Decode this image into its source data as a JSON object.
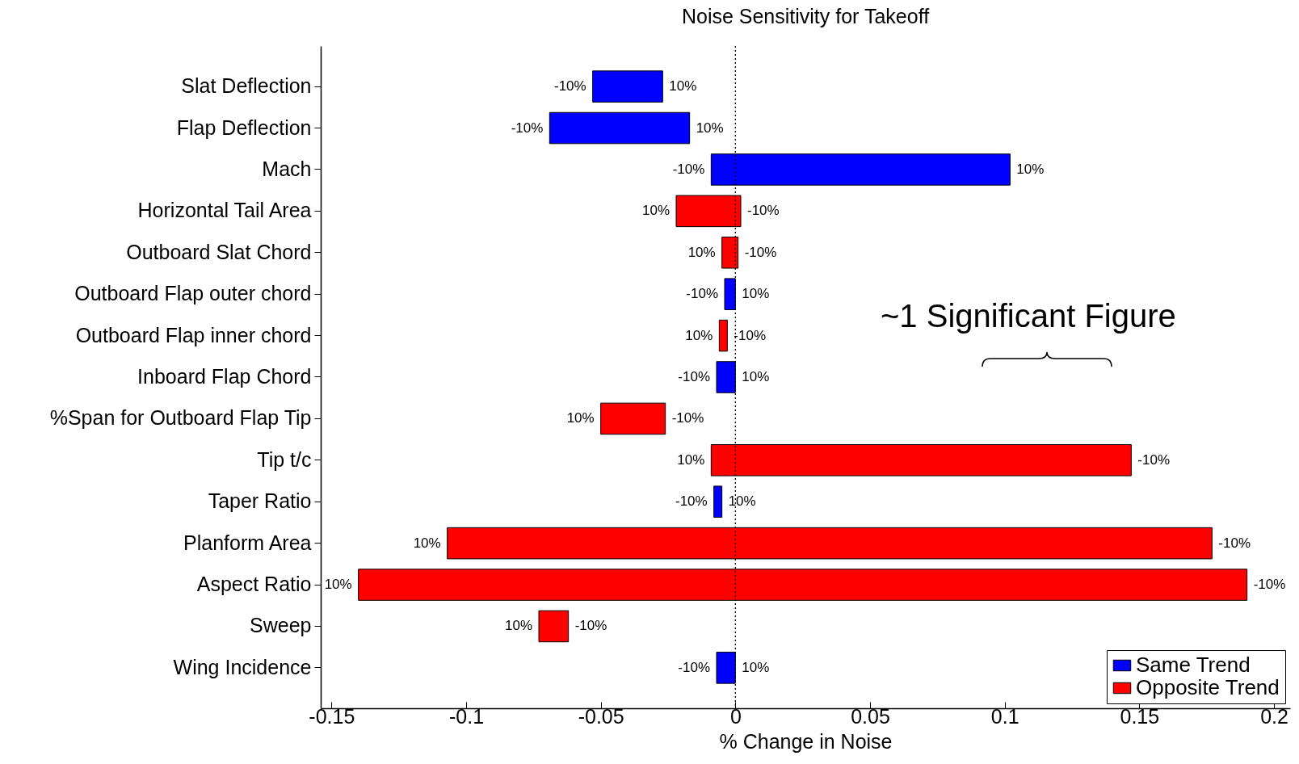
{
  "chart_data": {
    "type": "bar",
    "orientation": "horizontal",
    "title": "Noise Sensitivity for Takeoff",
    "xlabel": "% Change in Noise",
    "categories": [
      "Slat Deflection",
      "Flap Deflection",
      "Mach",
      "Horizontal Tail Area",
      "Outboard Slat Chord",
      "Outboard Flap outer chord",
      "Outboard Flap inner chord",
      "Inboard Flap Chord",
      "%Span for Outboard Flap Tip",
      "Tip t/c",
      "Taper Ratio",
      "Planform Area",
      "Aspect Ratio",
      "Sweep",
      "Wing Incidence"
    ],
    "series": [
      {
        "name": "Same Trend",
        "color": "#0000ff",
        "base": [
          -0.053,
          -0.069,
          -0.009,
          null,
          null,
          -0.004,
          null,
          -0.007,
          null,
          null,
          -0.008,
          null,
          null,
          null,
          -0.007
        ],
        "values": [
          0.026,
          0.052,
          0.111,
          null,
          null,
          0.004,
          null,
          0.007,
          null,
          null,
          0.003,
          null,
          null,
          null,
          0.007
        ]
      },
      {
        "name": "Opposite Trend",
        "color": "#ff0000",
        "base": [
          null,
          null,
          null,
          -0.022,
          -0.005,
          null,
          -0.006,
          null,
          -0.05,
          -0.009,
          null,
          -0.107,
          -0.14,
          -0.073,
          null
        ],
        "values": [
          null,
          null,
          null,
          0.024,
          0.006,
          null,
          0.003,
          null,
          0.024,
          0.156,
          null,
          0.284,
          0.33,
          0.011,
          null
        ]
      }
    ],
    "xlim": [
      -0.154,
      0.206
    ],
    "xticks": [
      -0.15,
      -0.1,
      -0.05,
      0,
      0.05,
      0.1,
      0.15,
      0.2
    ],
    "ref_lines": [
      {
        "axis": "x",
        "value": 0,
        "line_style": "dotted",
        "color": "#000000"
      }
    ],
    "legend": "bottom right",
    "grid": false,
    "annotations": [
      {
        "text": "-10%",
        "x": -0.053,
        "y": "Slat Deflection"
      },
      {
        "text": "10%",
        "x": -0.027,
        "y": "Slat Deflection"
      },
      {
        "text": "-10%",
        "x": -0.069,
        "y": "Flap Deflection"
      },
      {
        "text": "10%",
        "x": -0.017,
        "y": "Flap Deflection"
      },
      {
        "text": "-10%",
        "x": -0.009,
        "y": "Mach"
      },
      {
        "text": "10%",
        "x": 0.102,
        "y": "Mach"
      },
      {
        "text": "10%",
        "x": -0.022,
        "y": "Horizontal Tail Area"
      },
      {
        "text": "-10%",
        "x": 0.002,
        "y": "Horizontal Tail Area"
      },
      {
        "text": "10%",
        "x": -0.005,
        "y": "Outboard Slat Chord"
      },
      {
        "text": "-10%",
        "x": 0.001,
        "y": "Outboard Slat Chord"
      },
      {
        "text": "-10%",
        "x": -0.004,
        "y": "Outboard Flap outer chord"
      },
      {
        "text": "10%",
        "x": 0,
        "y": "Outboard Flap outer chord"
      },
      {
        "text": "10%",
        "x": -0.006,
        "y": "Outboard Flap inner chord"
      },
      {
        "text": "-10%",
        "x": -0.003,
        "y": "Outboard Flap inner chord"
      },
      {
        "text": "-10%",
        "x": -0.007,
        "y": "Inboard Flap Chord"
      },
      {
        "text": "10%",
        "x": 0,
        "y": "Inboard Flap Chord"
      },
      {
        "text": "10%",
        "x": -0.05,
        "y": "%Span for Outboard Flap Tip"
      },
      {
        "text": "-10%",
        "x": -0.026,
        "y": "%Span for Outboard Flap Tip"
      },
      {
        "text": "10%",
        "x": -0.009,
        "y": "Tip t/c"
      },
      {
        "text": "-10%",
        "x": 0.147,
        "y": "Tip t/c"
      },
      {
        "text": "-10%",
        "x": -0.008,
        "y": "Taper Ratio"
      },
      {
        "text": "10%",
        "x": -0.005,
        "y": "Taper Ratio"
      },
      {
        "text": "10%",
        "x": -0.107,
        "y": "Planform Area"
      },
      {
        "text": "-10%",
        "x": 0.177,
        "y": "Planform Area"
      },
      {
        "text": "10%",
        "x": -0.14,
        "y": "Aspect Ratio"
      },
      {
        "text": "-10%",
        "x": 0.19,
        "y": "Aspect Ratio"
      },
      {
        "text": "10%",
        "x": -0.073,
        "y": "Sweep"
      },
      {
        "text": "-10%",
        "x": -0.062,
        "y": "Sweep"
      },
      {
        "text": "-10%",
        "x": -0.007,
        "y": "Wing Incidence"
      },
      {
        "text": "10%",
        "x": 0,
        "y": "Wing Incidence"
      },
      "~1 Significant Figure"
    ]
  }
}
